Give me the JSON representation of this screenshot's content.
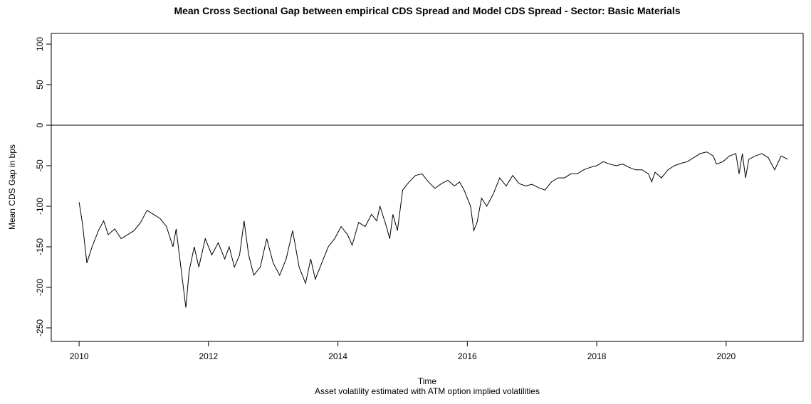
{
  "chart_data": {
    "type": "line",
    "title": "Mean Cross Sectional Gap between empirical CDS Spread and Model CDS Spread - Sector: Basic Materials",
    "x_label": "Time",
    "subtitle": "Asset volatility estimated with ATM option implied volatilities",
    "y_label": "Mean CDS Gap in bps",
    "xlim": [
      2009.57,
      2021.19
    ],
    "ylim": [
      -266.7,
      113.2
    ],
    "xticks": [
      2010,
      2012,
      2014,
      2016,
      2018,
      2020
    ],
    "yticks": [
      -250,
      -200,
      -150,
      -100,
      -50,
      0,
      50,
      100
    ],
    "reference_line": 0,
    "x": [
      2010.0,
      2010.05,
      2010.12,
      2010.2,
      2010.3,
      2010.38,
      2010.45,
      2010.55,
      2010.65,
      2010.75,
      2010.85,
      2010.95,
      2011.05,
      2011.15,
      2011.25,
      2011.35,
      2011.45,
      2011.5,
      2011.58,
      2011.65,
      2011.7,
      2011.78,
      2011.85,
      2011.95,
      2012.05,
      2012.15,
      2012.25,
      2012.32,
      2012.4,
      2012.48,
      2012.55,
      2012.62,
      2012.7,
      2012.8,
      2012.9,
      2013.0,
      2013.1,
      2013.2,
      2013.3,
      2013.4,
      2013.5,
      2013.58,
      2013.65,
      2013.75,
      2013.85,
      2013.95,
      2014.05,
      2014.15,
      2014.22,
      2014.32,
      2014.42,
      2014.52,
      2014.6,
      2014.65,
      2014.75,
      2014.8,
      2014.85,
      2014.92,
      2015.0,
      2015.1,
      2015.2,
      2015.3,
      2015.4,
      2015.5,
      2015.6,
      2015.7,
      2015.8,
      2015.88,
      2015.95,
      2016.0,
      2016.05,
      2016.1,
      2016.15,
      2016.22,
      2016.3,
      2016.4,
      2016.5,
      2016.6,
      2016.7,
      2016.8,
      2016.9,
      2017.0,
      2017.1,
      2017.2,
      2017.3,
      2017.4,
      2017.5,
      2017.6,
      2017.7,
      2017.8,
      2017.9,
      2018.0,
      2018.1,
      2018.2,
      2018.3,
      2018.4,
      2018.5,
      2018.6,
      2018.7,
      2018.8,
      2018.85,
      2018.9,
      2019.0,
      2019.1,
      2019.2,
      2019.3,
      2019.4,
      2019.5,
      2019.6,
      2019.7,
      2019.8,
      2019.85,
      2019.95,
      2020.05,
      2020.15,
      2020.2,
      2020.25,
      2020.3,
      2020.35,
      2020.45,
      2020.55,
      2020.65,
      2020.75,
      2020.85,
      2020.95
    ],
    "series": [
      {
        "name": "Mean CDS Gap",
        "color": "#000000",
        "values": [
          -95,
          -120,
          -170,
          -150,
          -130,
          -118,
          -135,
          -128,
          -140,
          -135,
          -130,
          -120,
          -105,
          -110,
          -115,
          -125,
          -150,
          -128,
          -180,
          -225,
          -180,
          -150,
          -175,
          -140,
          -160,
          -145,
          -165,
          -150,
          -175,
          -160,
          -118,
          -160,
          -185,
          -175,
          -140,
          -170,
          -185,
          -165,
          -130,
          -175,
          -195,
          -165,
          -190,
          -170,
          -150,
          -140,
          -125,
          -135,
          -148,
          -120,
          -125,
          -110,
          -118,
          -100,
          -125,
          -140,
          -110,
          -130,
          -80,
          -70,
          -62,
          -60,
          -70,
          -78,
          -72,
          -68,
          -75,
          -70,
          -80,
          -90,
          -100,
          -130,
          -120,
          -90,
          -100,
          -85,
          -65,
          -75,
          -62,
          -72,
          -75,
          -73,
          -77,
          -80,
          -70,
          -65,
          -65,
          -60,
          -60,
          -55,
          -52,
          -50,
          -45,
          -48,
          -50,
          -48,
          -52,
          -55,
          -55,
          -60,
          -70,
          -58,
          -65,
          -55,
          -50,
          -47,
          -45,
          -40,
          -35,
          -33,
          -38,
          -48,
          -45,
          -38,
          -35,
          -60,
          -35,
          -65,
          -42,
          -38,
          -35,
          -40,
          -55,
          -38,
          -42
        ]
      }
    ]
  }
}
